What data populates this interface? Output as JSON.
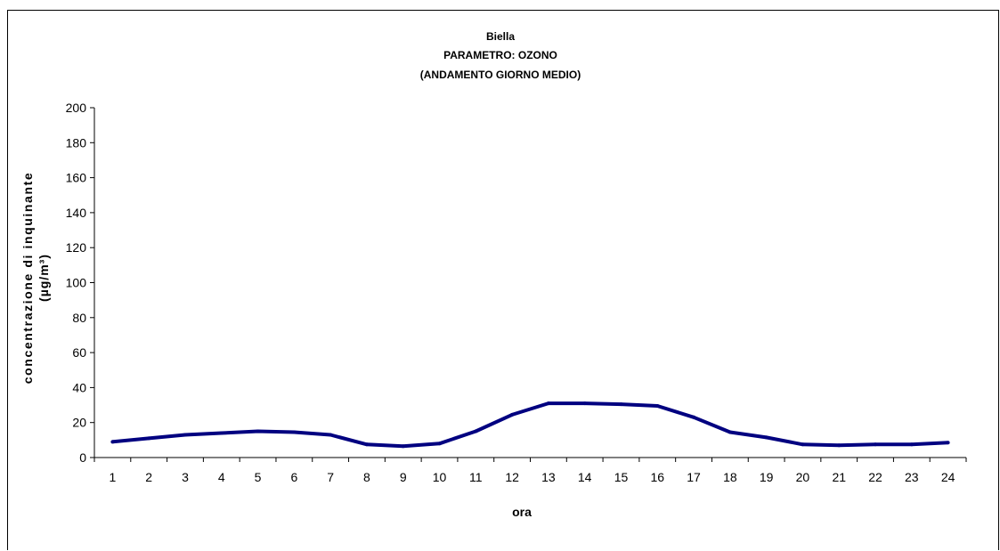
{
  "chart_data": {
    "type": "line",
    "title_lines": [
      "Biella",
      "PARAMETRO: OZONO",
      "(ANDAMENTO GIORNO MEDIO)"
    ],
    "xlabel": "ora",
    "ylabel_lines": [
      "concentrazione di inquinante",
      "(µg/m³)"
    ],
    "categories": [
      "1",
      "2",
      "3",
      "4",
      "5",
      "6",
      "7",
      "8",
      "9",
      "10",
      "11",
      "12",
      "13",
      "14",
      "15",
      "16",
      "17",
      "18",
      "19",
      "20",
      "21",
      "22",
      "23",
      "24"
    ],
    "series": [
      {
        "color": "#000080",
        "values": [
          9,
          11,
          13,
          14,
          15,
          14.5,
          13,
          7.5,
          6.5,
          8,
          15,
          24.5,
          31,
          31,
          30.5,
          29.5,
          23,
          14.5,
          11.5,
          7.5,
          7,
          7.5,
          7.5,
          8.5
        ]
      }
    ],
    "ylim": [
      0,
      200
    ],
    "yticks": [
      0,
      20,
      40,
      60,
      80,
      100,
      120,
      140,
      160,
      180,
      200
    ],
    "grid": false,
    "legend": "none"
  }
}
